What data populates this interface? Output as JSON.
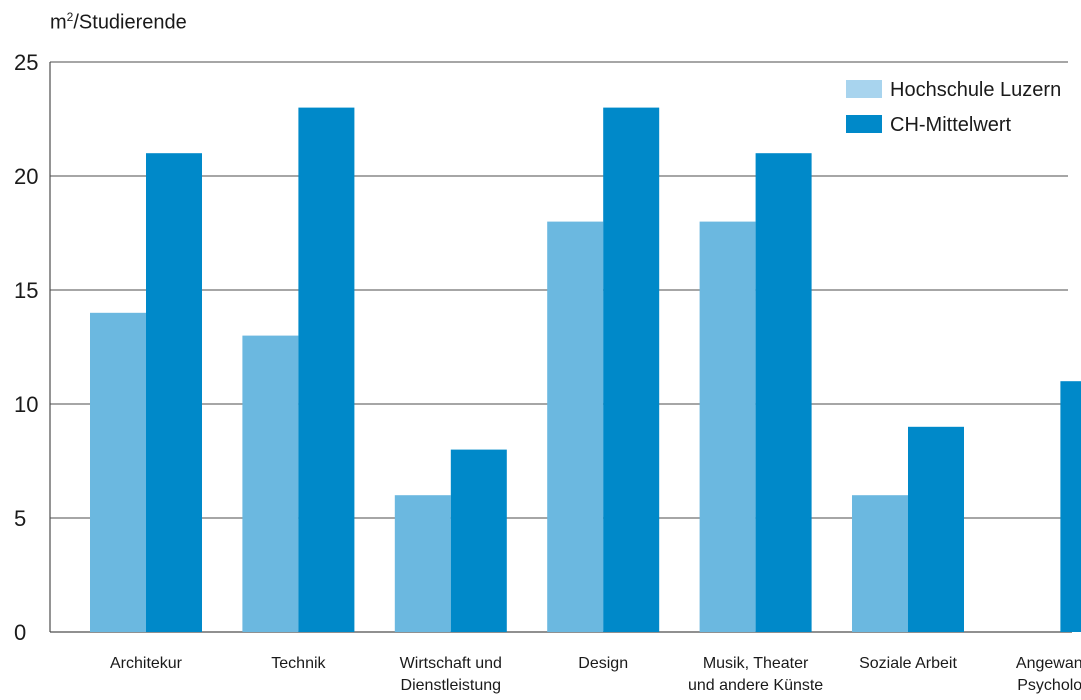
{
  "chart_data": {
    "type": "bar",
    "ylabel": {
      "base": "m",
      "sup": "2",
      "rest": "/Studierende"
    },
    "ylim": [
      0,
      25
    ],
    "yticks": [
      0,
      5,
      10,
      15,
      20,
      25
    ],
    "grid": true,
    "legend_position": "top-right",
    "categories": [
      [
        "Architekur"
      ],
      [
        "Technik"
      ],
      [
        "Wirtschaft und",
        "Dienstleistung"
      ],
      [
        "Design"
      ],
      [
        "Musik, Theater",
        "und andere Künste"
      ],
      [
        "Soziale Arbeit"
      ],
      [
        "Angewandte",
        "Psychologie"
      ]
    ],
    "series": [
      {
        "name": "Hochschule Luzern",
        "color": "#6bb8e0",
        "legend_color": "#a8d4ee",
        "values": [
          14,
          13,
          6,
          18,
          18,
          6,
          null
        ]
      },
      {
        "name": "CH-Mittelwert",
        "color": "#0089c9",
        "legend_color": "#0089c9",
        "values": [
          21,
          23,
          8,
          23,
          21,
          9,
          11
        ]
      }
    ]
  }
}
